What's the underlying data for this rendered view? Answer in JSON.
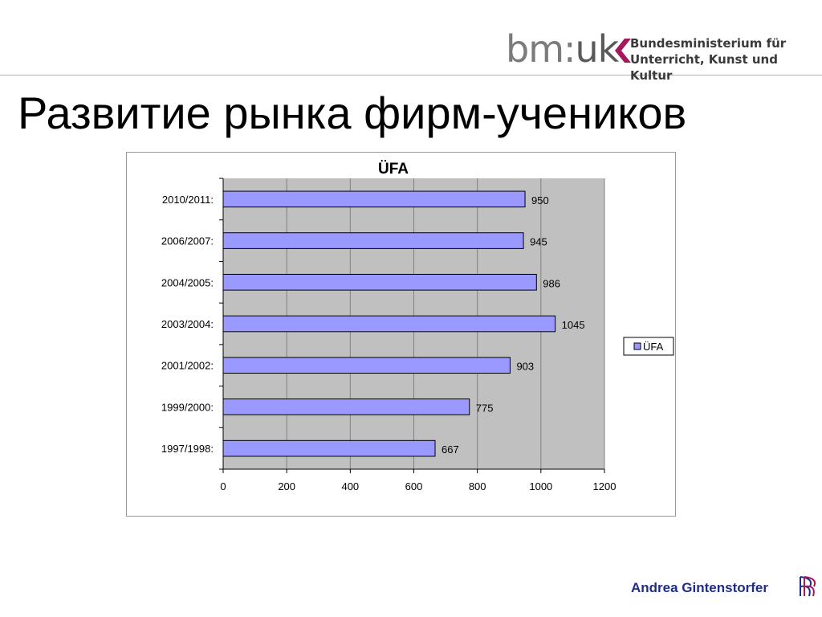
{
  "header": {
    "logo_mark_left": "bm",
    "logo_mark_colon": ":",
    "logo_mark_right": "uk",
    "logo_line1": "Bundesministerium für",
    "logo_line2": "Unterricht, Kunst und Kultur"
  },
  "slide": {
    "title": "Развитие рынка фирм-учеников",
    "footer_author": "Andrea Gintenstorfer"
  },
  "colors": {
    "bar_fill": "#9999ff",
    "bar_stroke": "#000000",
    "plot_background": "#c0c0c0",
    "grid": "#808080"
  },
  "chart_data": {
    "type": "bar",
    "orientation": "horizontal",
    "title": "ÜFA",
    "categories": [
      "2010/2011:",
      "2006/2007:",
      "2004/2005:",
      "2003/2004:",
      "2001/2002:",
      "1999/2000:",
      "1997/1998:"
    ],
    "series": [
      {
        "name": "ÜFA",
        "values": [
          950,
          945,
          986,
          1045,
          903,
          775,
          667
        ]
      }
    ],
    "xlim": [
      0,
      1200
    ],
    "xticks": [
      0,
      200,
      400,
      600,
      800,
      1000,
      1200
    ],
    "grid": true,
    "legend": "right",
    "data_labels": true
  }
}
